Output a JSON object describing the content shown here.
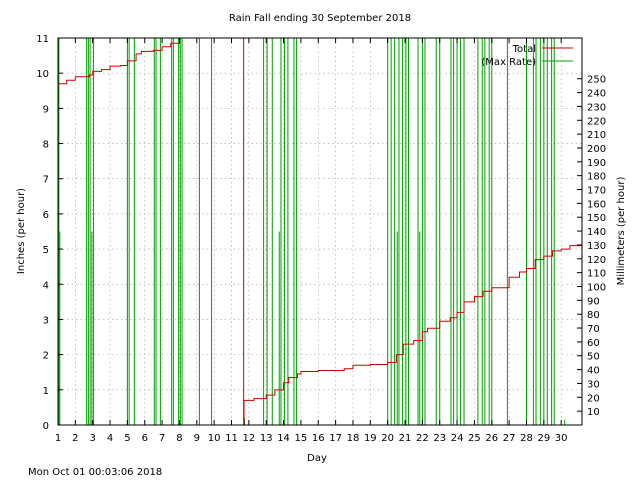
{
  "chart_data": {
    "type": "line",
    "title": "Rain Fall ending 30 September 2018",
    "xlabel": "Day",
    "ylabel_left": "Inches (per hour)",
    "ylabel_right": "Millimeters (per hour)",
    "timestamp": "Mon Oct 01 00:03:06 2018",
    "xlim": [
      1,
      31.2
    ],
    "ylim": [
      0,
      11
    ],
    "ylim_right": [
      0,
      279.4
    ],
    "x_ticks": [
      1,
      2,
      3,
      4,
      5,
      6,
      7,
      8,
      9,
      10,
      11,
      12,
      13,
      14,
      15,
      16,
      17,
      18,
      19,
      20,
      21,
      22,
      23,
      24,
      25,
      26,
      27,
      28,
      29,
      30
    ],
    "x_tick_labels": [
      "1",
      "2",
      "3",
      "4",
      "5",
      "6",
      "7",
      "8",
      "9",
      "10",
      "11",
      "12",
      "13",
      "14",
      "15",
      "16",
      "17",
      "18",
      "19",
      "20",
      "21",
      "22",
      "23",
      "24",
      "25",
      "26",
      "27",
      "28",
      "29",
      "30"
    ],
    "y_ticks": [
      0,
      1,
      2,
      3,
      4,
      5,
      6,
      7,
      8,
      9,
      10,
      11
    ],
    "y_tick_labels": [
      "0",
      "1",
      "2",
      "3",
      "4",
      "5",
      "6",
      "7",
      "8",
      "9",
      "10",
      "11"
    ],
    "y2_ticks": [
      10,
      20,
      30,
      40,
      50,
      60,
      70,
      80,
      90,
      100,
      110,
      120,
      130,
      140,
      150,
      160,
      170,
      180,
      190,
      200,
      210,
      220,
      230,
      240,
      250
    ],
    "y2_tick_labels": [
      "10",
      "20",
      "30",
      "40",
      "50",
      "60",
      "70",
      "80",
      "90",
      "100",
      "110",
      "120",
      "130",
      "140",
      "150",
      "160",
      "170",
      "180",
      "190",
      "200",
      "210",
      "220",
      "230",
      "240",
      "250"
    ],
    "grid": true,
    "legend_position": "top-right",
    "colors": {
      "total": "#cc0000",
      "max_rate": "#00a000"
    },
    "series": [
      {
        "name": "Total",
        "x": [
          1,
          1.5,
          2,
          2.8,
          3.0,
          3.5,
          4.0,
          4.6,
          5.0,
          5.5,
          5.8,
          6.5,
          7.0,
          7.5,
          8.0,
          8.15,
          11.7,
          11.72,
          12.3,
          13.0,
          13.5,
          14.0,
          14.3,
          14.8,
          15.0,
          16.0,
          17.0,
          17.5,
          18.0,
          19.0,
          20.0,
          20.5,
          20.9,
          21.5,
          22.0,
          22.3,
          23.0,
          23.6,
          24.0,
          24.4,
          25.0,
          25.5,
          26.0,
          27.0,
          27.6,
          28.0,
          28.5,
          29.0,
          29.5,
          30.0,
          30.5,
          31.2
        ],
        "values": [
          9.7,
          9.8,
          9.9,
          9.95,
          10.05,
          10.1,
          10.2,
          10.22,
          10.35,
          10.55,
          10.62,
          10.65,
          10.75,
          10.85,
          11.0,
          11.0,
          0.0,
          0.7,
          0.75,
          0.85,
          1.0,
          1.2,
          1.35,
          1.45,
          1.52,
          1.55,
          1.55,
          1.6,
          1.7,
          1.72,
          1.78,
          2.0,
          2.3,
          2.4,
          2.65,
          2.75,
          2.95,
          3.05,
          3.2,
          3.5,
          3.65,
          3.8,
          3.9,
          4.2,
          4.35,
          4.45,
          4.7,
          4.8,
          4.95,
          5.0,
          5.1,
          5.15
        ]
      },
      {
        "name": "(Max Rate)",
        "spikes": [
          {
            "x": 1.05,
            "y": 11
          },
          {
            "x": 1.1,
            "y": 5.5
          },
          {
            "x": 2.65,
            "y": 11
          },
          {
            "x": 2.75,
            "y": 11
          },
          {
            "x": 2.85,
            "y": 11
          },
          {
            "x": 2.95,
            "y": 5.5
          },
          {
            "x": 3.05,
            "y": 11
          },
          {
            "x": 5.0,
            "y": 11
          },
          {
            "x": 5.1,
            "y": 11
          },
          {
            "x": 5.4,
            "y": 11
          },
          {
            "x": 6.55,
            "y": 11
          },
          {
            "x": 6.65,
            "y": 11
          },
          {
            "x": 6.9,
            "y": 11
          },
          {
            "x": 7.55,
            "y": 11
          },
          {
            "x": 7.65,
            "y": 11
          },
          {
            "x": 7.95,
            "y": 11
          },
          {
            "x": 8.05,
            "y": 11
          },
          {
            "x": 8.15,
            "y": 11
          },
          {
            "x": 9.15,
            "y": 11
          },
          {
            "x": 9.85,
            "y": 11
          },
          {
            "x": 11.75,
            "y": 0.2
          },
          {
            "x": 12.85,
            "y": 11
          },
          {
            "x": 13.05,
            "y": 11
          },
          {
            "x": 13.35,
            "y": 11
          },
          {
            "x": 13.75,
            "y": 5.5
          },
          {
            "x": 13.85,
            "y": 11
          },
          {
            "x": 14.05,
            "y": 11
          },
          {
            "x": 14.25,
            "y": 11
          },
          {
            "x": 14.6,
            "y": 11
          },
          {
            "x": 14.75,
            "y": 11
          },
          {
            "x": 20.0,
            "y": 11
          },
          {
            "x": 20.2,
            "y": 11
          },
          {
            "x": 20.4,
            "y": 11
          },
          {
            "x": 20.55,
            "y": 5.5
          },
          {
            "x": 20.65,
            "y": 11
          },
          {
            "x": 20.85,
            "y": 11
          },
          {
            "x": 21.05,
            "y": 11
          },
          {
            "x": 21.2,
            "y": 11
          },
          {
            "x": 21.75,
            "y": 11
          },
          {
            "x": 21.85,
            "y": 5.5
          },
          {
            "x": 22.0,
            "y": 11
          },
          {
            "x": 22.15,
            "y": 11
          },
          {
            "x": 22.8,
            "y": 11
          },
          {
            "x": 23.0,
            "y": 11
          },
          {
            "x": 23.65,
            "y": 11
          },
          {
            "x": 23.8,
            "y": 11
          },
          {
            "x": 24.0,
            "y": 11
          },
          {
            "x": 24.2,
            "y": 11
          },
          {
            "x": 24.4,
            "y": 11
          },
          {
            "x": 25.2,
            "y": 11
          },
          {
            "x": 25.45,
            "y": 11
          },
          {
            "x": 25.6,
            "y": 11
          },
          {
            "x": 25.85,
            "y": 11
          },
          {
            "x": 26.0,
            "y": 11
          },
          {
            "x": 26.9,
            "y": 11
          },
          {
            "x": 28.0,
            "y": 11
          },
          {
            "x": 28.4,
            "y": 11
          },
          {
            "x": 28.55,
            "y": 11
          },
          {
            "x": 28.8,
            "y": 11
          },
          {
            "x": 29.0,
            "y": 11
          },
          {
            "x": 29.2,
            "y": 11
          },
          {
            "x": 29.45,
            "y": 11
          },
          {
            "x": 29.6,
            "y": 11
          },
          {
            "x": 30.2,
            "y": 0.15
          }
        ]
      }
    ]
  }
}
